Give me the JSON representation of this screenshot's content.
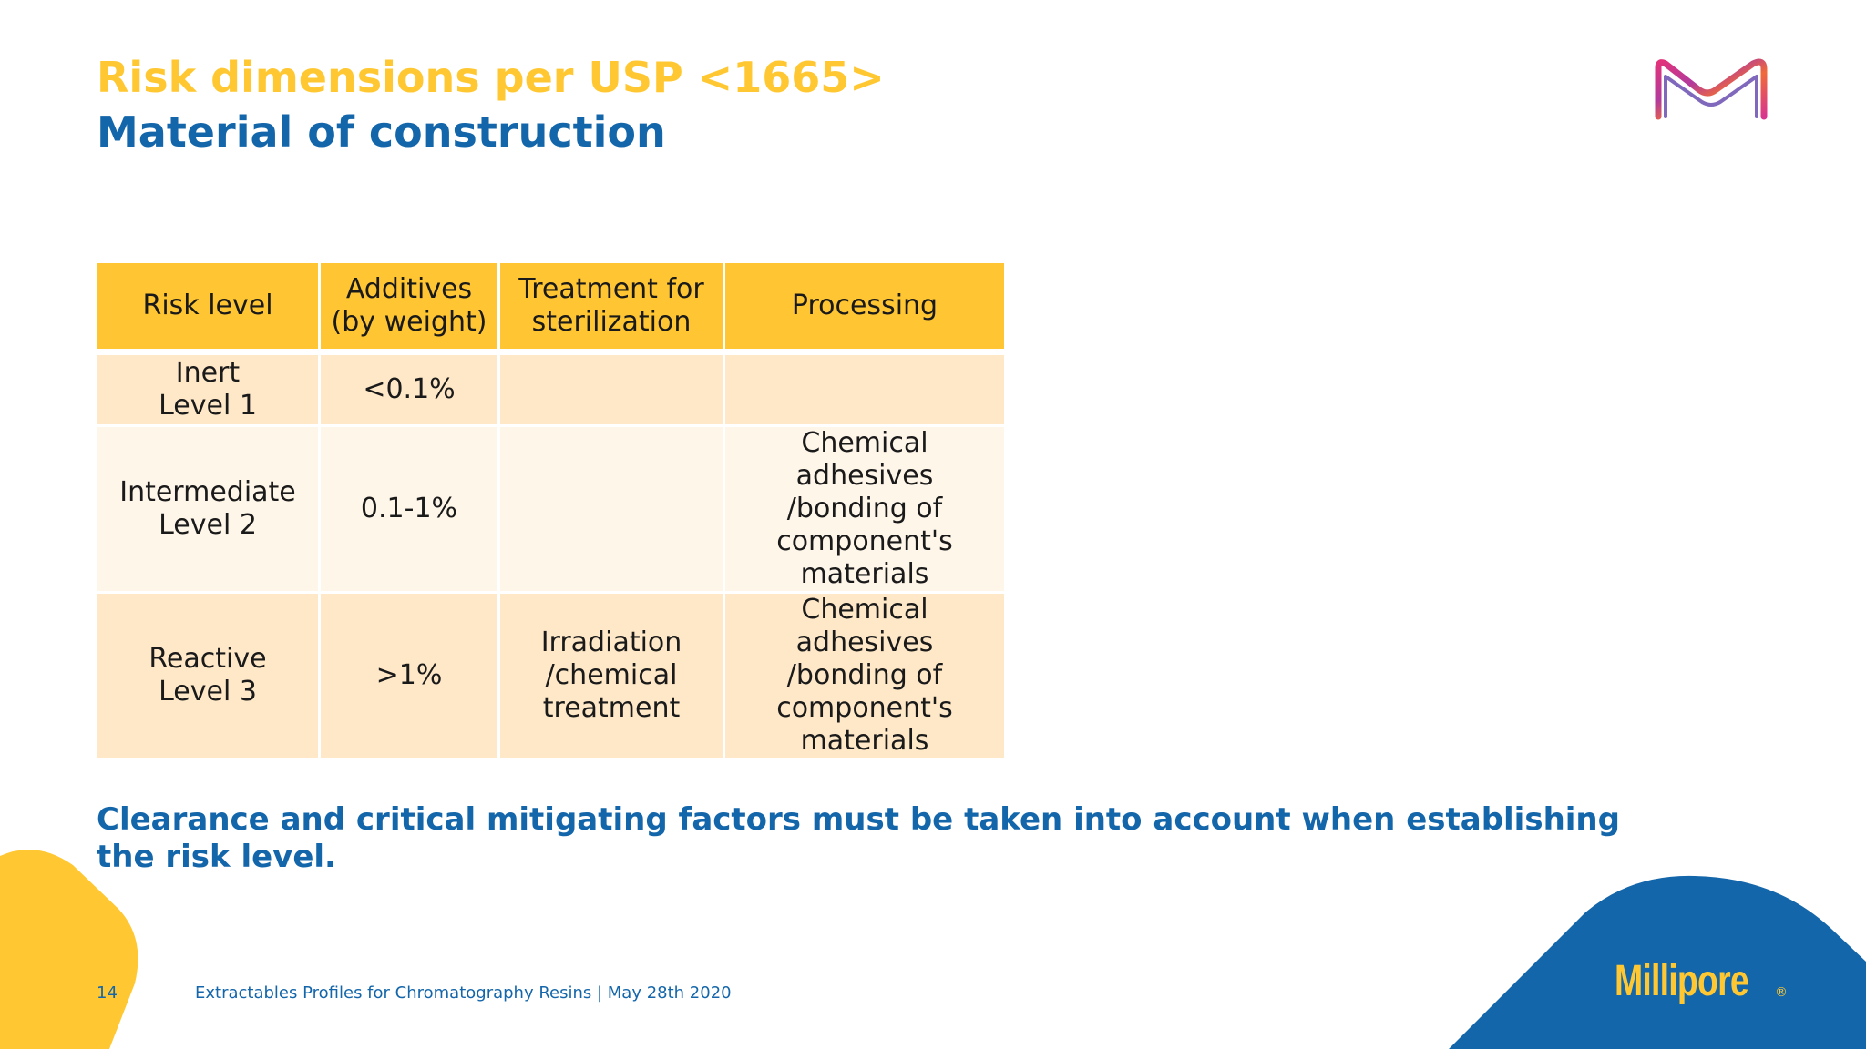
{
  "slide": {
    "title": "Risk dimensions per USP <1665>",
    "subtitle": "Material of construction",
    "note": "Clearance and critical mitigating factors must be taken into account when establishing the risk level.",
    "page_number": "14",
    "footer_text": "Extractables Profiles for Chromatography Resins | May 28th 2020",
    "brand": "Millipore",
    "brand_reg": "®"
  },
  "table": {
    "headers": {
      "c1": [
        "Risk level"
      ],
      "c2": [
        "Additives",
        "(by weight)"
      ],
      "c3": [
        "Treatment for",
        "sterilization"
      ],
      "c4": [
        "Processing"
      ]
    },
    "rows": [
      {
        "risk": [
          "Inert",
          "Level 1"
        ],
        "additives": "<0.1%",
        "treatment": [],
        "processing": []
      },
      {
        "risk": [
          "Intermediate",
          "Level 2"
        ],
        "additives": "0.1-1%",
        "treatment": [],
        "processing": [
          "Chemical adhesives",
          "/bonding of",
          "component's",
          "materials"
        ]
      },
      {
        "risk": [
          "Reactive",
          "Level 3"
        ],
        "additives": ">1%",
        "treatment": [
          "Irradiation",
          "/chemical",
          "treatment"
        ],
        "processing": [
          "Chemical adhesives",
          "/bonding of",
          "component's",
          "materials"
        ]
      }
    ]
  },
  "colors": {
    "title": "#FFC832",
    "accent_blue": "#1466AA",
    "header_fill": "#FFC532",
    "row_fill_dark": "#FEE8C8",
    "row_fill_light": "#FFF6EA"
  },
  "icons": {
    "logo": "merck-m-logo-icon"
  }
}
